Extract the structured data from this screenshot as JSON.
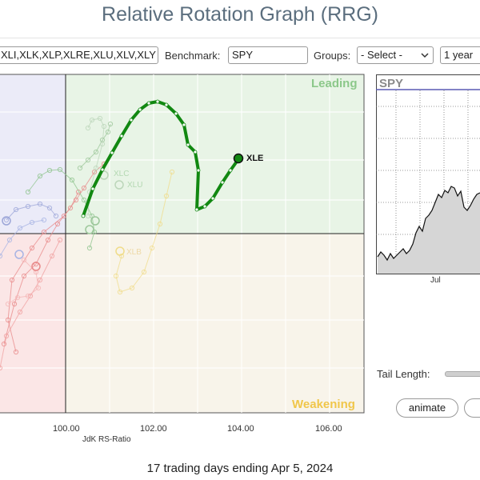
{
  "title": "Relative Rotation Graph (RRG)",
  "toolbar": {
    "symbols_value": "XLI,XLK,XLP,XLRE,XLU,XLV,XLY",
    "benchmark_label": "Benchmark:",
    "benchmark_value": "SPY",
    "groups_label": "Groups:",
    "groups_value": "- Select -",
    "period_value": "1 year"
  },
  "rrg": {
    "quadrants": {
      "leading": "Leading",
      "weakening": "Weakening"
    },
    "x_ticks": [
      "100.00",
      "102.00",
      "104.00",
      "106.00"
    ],
    "x_axis_label": "JdK RS-Ratio",
    "highlighted_symbol": "XLE",
    "faded_symbols": [
      "XLC",
      "XLU",
      "XLB"
    ],
    "colors": {
      "highlight": "#118811",
      "leading_bg": "#e8f4e6",
      "weakening_bg": "#f8f4ea",
      "lagging_bg": "#fbe6e6",
      "improving_bg": "#ebebf8"
    }
  },
  "side_chart": {
    "symbol": "SPY",
    "x_tick": "Jul"
  },
  "controls": {
    "tail_length_label": "Tail Length:",
    "animate_label": "animate"
  },
  "footer": "17 trading days ending Apr 5, 2024"
}
